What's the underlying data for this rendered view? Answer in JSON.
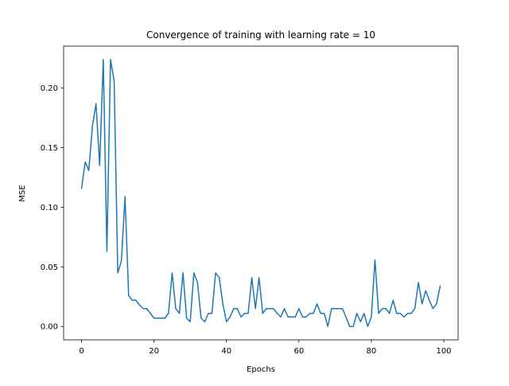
{
  "chart_data": {
    "type": "line",
    "title": "Convergence of training with learning rate = 10",
    "xlabel": "Epochs",
    "ylabel": "MSE",
    "xlim": [
      -4.95,
      103.95
    ],
    "ylim": [
      -0.0112,
      0.2352
    ],
    "xticks": [
      0,
      20,
      40,
      60,
      80,
      100
    ],
    "xtick_labels": [
      "0",
      "20",
      "40",
      "60",
      "80",
      "100"
    ],
    "yticks": [
      0.0,
      0.05,
      0.1,
      0.15,
      0.2
    ],
    "ytick_labels": [
      "0.00",
      "0.05",
      "0.10",
      "0.15",
      "0.20"
    ],
    "grid": false,
    "legend": "none",
    "line_color": "#1f77b4",
    "series": [
      {
        "x": [
          0,
          1,
          2,
          3,
          4,
          5,
          6,
          7,
          8,
          9,
          10,
          11,
          12,
          13,
          14,
          15,
          16,
          17,
          18,
          19,
          20,
          21,
          22,
          23,
          24,
          25,
          26,
          27,
          28,
          29,
          30,
          31,
          32,
          33,
          34,
          35,
          36,
          37,
          38,
          39,
          40,
          41,
          42,
          43,
          44,
          45,
          46,
          47,
          48,
          49,
          50,
          51,
          52,
          53,
          54,
          55,
          56,
          57,
          58,
          59,
          60,
          61,
          62,
          63,
          64,
          65,
          66,
          67,
          68,
          69,
          70,
          71,
          72,
          73,
          74,
          75,
          76,
          77,
          78,
          79,
          80,
          81,
          82,
          83,
          84,
          85,
          86,
          87,
          88,
          89,
          90,
          91,
          92,
          93,
          94,
          95,
          96,
          97,
          98,
          99
        ],
        "values": [
          0.116,
          0.138,
          0.131,
          0.168,
          0.187,
          0.135,
          0.224,
          0.063,
          0.224,
          0.206,
          0.045,
          0.055,
          0.109,
          0.026,
          0.022,
          0.022,
          0.018,
          0.015,
          0.015,
          0.011,
          0.007,
          0.007,
          0.007,
          0.007,
          0.011,
          0.045,
          0.015,
          0.011,
          0.045,
          0.007,
          0.004,
          0.045,
          0.037,
          0.007,
          0.004,
          0.011,
          0.011,
          0.045,
          0.041,
          0.019,
          0.004,
          0.008,
          0.015,
          0.015,
          0.008,
          0.011,
          0.011,
          0.041,
          0.015,
          0.041,
          0.011,
          0.015,
          0.015,
          0.015,
          0.011,
          0.008,
          0.015,
          0.008,
          0.008,
          0.008,
          0.015,
          0.008,
          0.008,
          0.011,
          0.011,
          0.019,
          0.011,
          0.011,
          0.0,
          0.015,
          0.015,
          0.015,
          0.015,
          0.008,
          0.0,
          0.0,
          0.011,
          0.004,
          0.011,
          0.0,
          0.008,
          0.056,
          0.011,
          0.015,
          0.015,
          0.011,
          0.022,
          0.011,
          0.011,
          0.008,
          0.011,
          0.011,
          0.015,
          0.037,
          0.019,
          0.03,
          0.022,
          0.015,
          0.019,
          0.034
        ]
      }
    ]
  }
}
